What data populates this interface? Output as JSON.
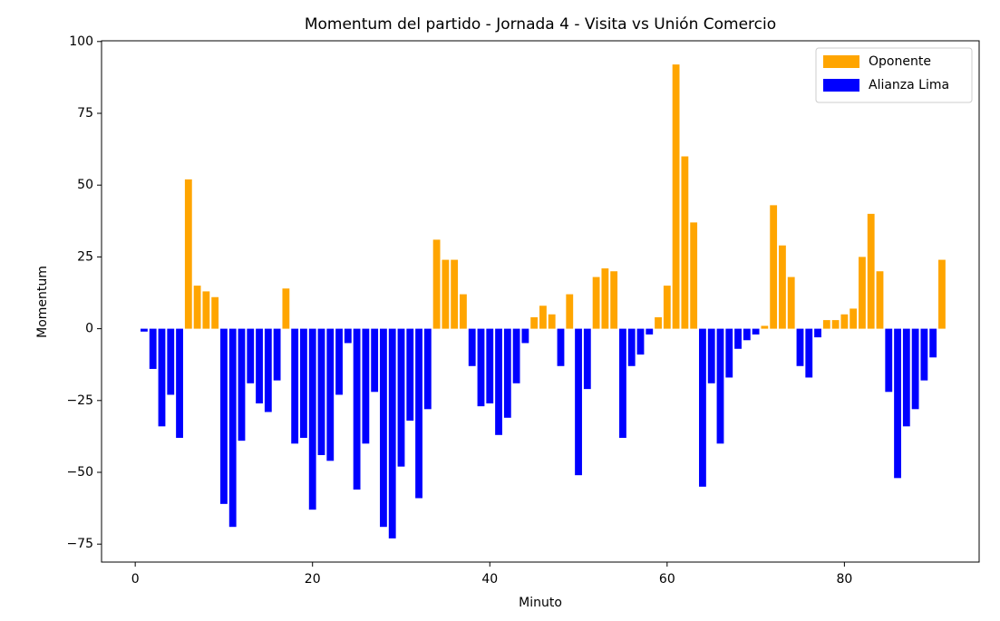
{
  "chart_data": {
    "type": "bar",
    "title": "Momentum del partido - Jornada 4 - Visita vs Unión Comercio",
    "x_label": "Minuto",
    "y_label": "Momentum",
    "x": [
      1,
      2,
      3,
      4,
      5,
      6,
      7,
      8,
      9,
      10,
      11,
      12,
      13,
      14,
      15,
      16,
      17,
      18,
      19,
      20,
      21,
      22,
      23,
      24,
      25,
      26,
      27,
      28,
      29,
      30,
      31,
      32,
      33,
      34,
      35,
      36,
      37,
      38,
      39,
      40,
      41,
      42,
      43,
      44,
      45,
      46,
      47,
      48,
      49,
      50,
      51,
      52,
      53,
      54,
      55,
      56,
      57,
      58,
      59,
      60,
      61,
      62,
      63,
      64,
      65,
      66,
      67,
      68,
      69,
      70,
      71,
      72,
      73,
      74,
      75,
      76,
      77,
      78,
      79,
      80,
      81,
      82,
      83,
      84,
      85,
      86,
      87,
      88,
      89,
      90,
      91
    ],
    "series": [
      {
        "name": "Oponente",
        "color": "#ffa500",
        "values": [
          null,
          null,
          null,
          null,
          null,
          52,
          15,
          13,
          11,
          null,
          null,
          null,
          null,
          null,
          null,
          null,
          14,
          null,
          null,
          null,
          null,
          null,
          null,
          null,
          null,
          null,
          null,
          null,
          null,
          null,
          null,
          null,
          null,
          31,
          24,
          24,
          12,
          null,
          null,
          null,
          null,
          null,
          null,
          null,
          4,
          8,
          5,
          null,
          12,
          null,
          null,
          18,
          21,
          20,
          null,
          null,
          null,
          null,
          4,
          15,
          92,
          60,
          37,
          null,
          null,
          null,
          null,
          null,
          null,
          null,
          1,
          43,
          29,
          18,
          null,
          null,
          null,
          3,
          3,
          5,
          7,
          25,
          40,
          20,
          null,
          null,
          null,
          null,
          null,
          null,
          24
        ]
      },
      {
        "name": "Alianza Lima",
        "color": "#0000ff",
        "values": [
          -1,
          -14,
          -34,
          -23,
          -38,
          null,
          null,
          null,
          null,
          -61,
          -69,
          -39,
          -19,
          -26,
          -29,
          -18,
          null,
          -40,
          -38,
          -63,
          -44,
          -46,
          -23,
          -5,
          -56,
          -40,
          -22,
          -69,
          -73,
          -48,
          -32,
          -59,
          -28,
          null,
          null,
          null,
          null,
          -13,
          -27,
          -26,
          -37,
          -31,
          -19,
          -5,
          null,
          null,
          null,
          -13,
          null,
          -51,
          -21,
          null,
          null,
          null,
          -38,
          -13,
          -9,
          -2,
          null,
          null,
          null,
          null,
          null,
          -55,
          -19,
          -40,
          -17,
          -7,
          -4,
          -2,
          null,
          null,
          null,
          null,
          -13,
          -17,
          -3,
          null,
          null,
          null,
          null,
          null,
          null,
          null,
          -22,
          -52,
          -34,
          -28,
          -18,
          -10,
          null
        ]
      }
    ],
    "xlim": [
      -3.8,
      95.2
    ],
    "xticks": [
      0,
      20,
      40,
      60,
      80
    ],
    "ylim": [
      -81.25,
      100.25
    ],
    "yticks": [
      {
        "value": -75,
        "label": "−75"
      },
      {
        "value": -50,
        "label": "−50"
      },
      {
        "value": -25,
        "label": "−25"
      },
      0,
      25,
      50,
      75,
      100
    ],
    "bar_width": 0.8,
    "grid": false,
    "legend": "upper right"
  }
}
